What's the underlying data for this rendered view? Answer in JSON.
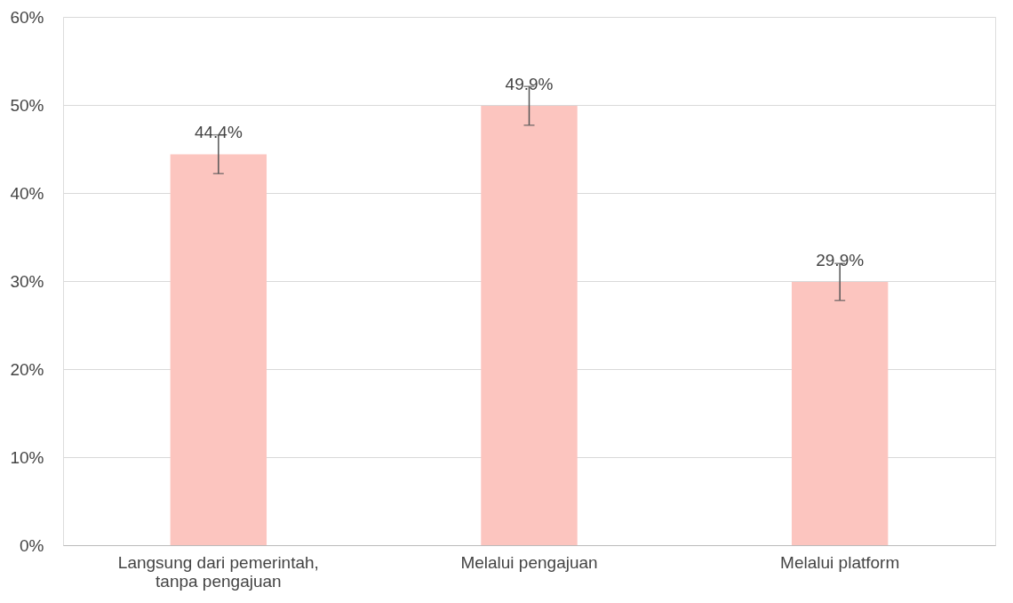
{
  "chart_data": {
    "type": "bar",
    "categories": [
      "Langsung dari pemerintah,\ntanpa pengajuan",
      "Melalui pengajuan",
      "Melalui platform"
    ],
    "values": [
      44.4,
      49.9,
      29.9
    ],
    "value_labels": [
      "44.4%",
      "49.9%",
      "29.9%"
    ],
    "errors": [
      2.2,
      2.2,
      2.1
    ],
    "color": "#fcc5bf",
    "ylim": [
      0,
      60
    ],
    "yticks": [
      {
        "value": 0,
        "label": "0%"
      },
      {
        "value": 10,
        "label": "10%"
      },
      {
        "value": 20,
        "label": "20%"
      },
      {
        "value": 30,
        "label": "30%"
      },
      {
        "value": 40,
        "label": "40%"
      },
      {
        "value": 50,
        "label": "50%"
      },
      {
        "value": 60,
        "label": "60%"
      }
    ],
    "grid": "y"
  }
}
